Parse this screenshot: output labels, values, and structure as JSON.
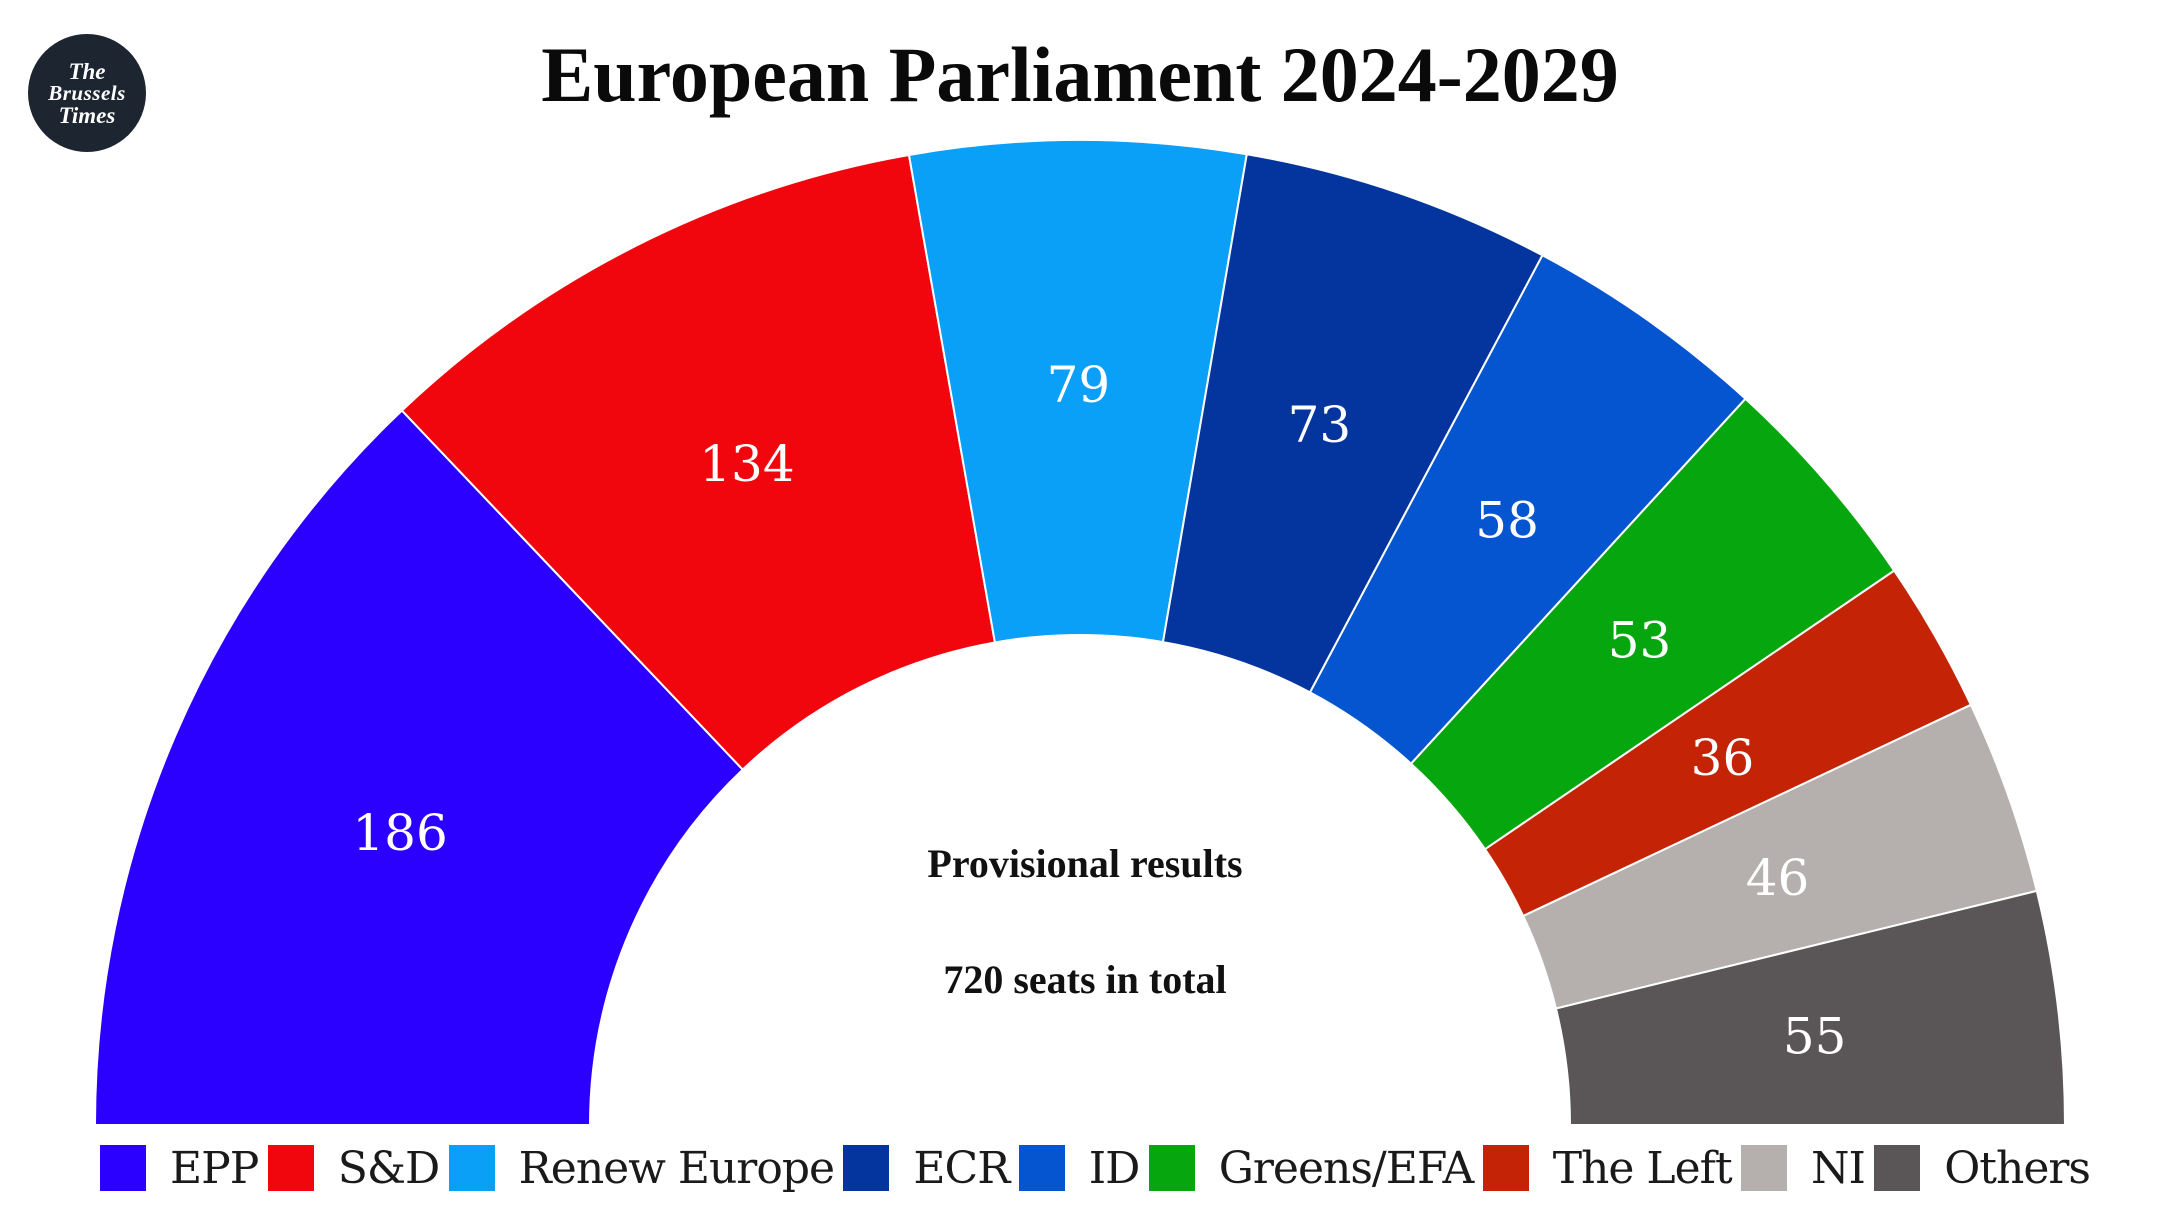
{
  "logo": {
    "line1": "The",
    "line2": "Brussels",
    "line3": "Times"
  },
  "chart_data": {
    "type": "pie",
    "subtype": "parliament-half-donut",
    "title": "European Parliament 2024-2029",
    "subtitle": "Provisional results",
    "total_label": "720 seats in total",
    "total_seats": 720,
    "legend_position": "bottom",
    "categories": [
      "EPP",
      "S&D",
      "Renew Europe",
      "ECR",
      "ID",
      "Greens/EFA",
      "The Left",
      "NI",
      "Others"
    ],
    "values": [
      186,
      134,
      79,
      73,
      58,
      53,
      36,
      46,
      55
    ],
    "colors": [
      "#2b00ff",
      "#f0060c",
      "#0aa0f8",
      "#04359f",
      "#0555d0",
      "#05a60e",
      "#c52305",
      "#b5b0ad",
      "#5a5657"
    ],
    "data_labels": [
      "186",
      "134",
      "79",
      "73",
      "58",
      "53",
      "36",
      "46",
      "55"
    ]
  }
}
